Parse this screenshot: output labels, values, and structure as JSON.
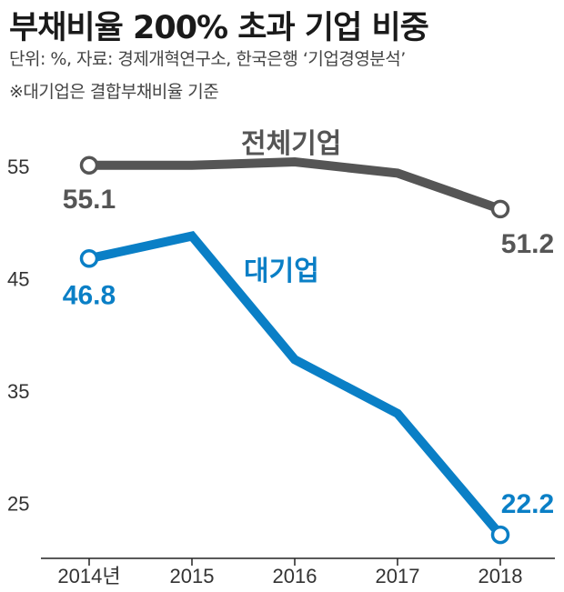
{
  "chart_data": {
    "type": "line",
    "title": "부채비율 200% 초과 기업 비중",
    "subtitle": "단위: %, 자료: 경제개혁연구소, 한국은행 ‘기업경영분석’",
    "note": "※대기업은 결합부채비율 기준",
    "categories": [
      "2014년",
      "2015",
      "2016",
      "2017",
      "2018"
    ],
    "ylim": [
      21,
      60
    ],
    "yticks": [
      25,
      35,
      45,
      55
    ],
    "series": [
      {
        "name": "전체기업",
        "color": "#555555",
        "values": [
          55.1,
          55.1,
          55.4,
          54.4,
          51.2
        ],
        "labels": [
          "55.1",
          "",
          "",
          "",
          "51.2"
        ]
      },
      {
        "name": "대기업",
        "color": "#0a7fc6",
        "values": [
          46.8,
          48.8,
          37.8,
          33.0,
          22.2
        ],
        "labels": [
          "46.8",
          "",
          "",
          "",
          "22.2"
        ]
      }
    ]
  }
}
